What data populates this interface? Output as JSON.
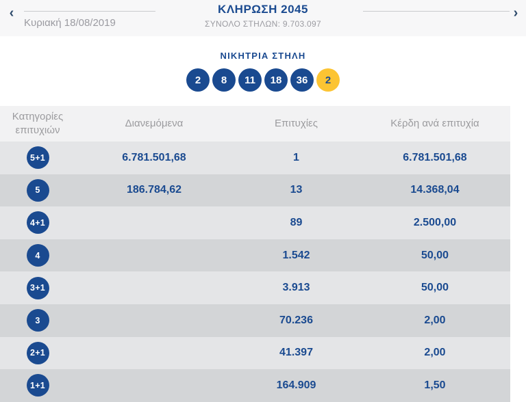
{
  "header": {
    "title": "ΚΛΗΡΩΣΗ 2045",
    "total_columns": "ΣΥΝΟΛΟ ΣΤΗΛΩΝ: 9.703.097",
    "date": "Κυριακή 18/08/2019",
    "prev_icon": "‹",
    "next_icon": "›"
  },
  "winning": {
    "title": "ΝΙΚΗΤΡΙΑ ΣΤΗΛΗ",
    "numbers": [
      "2",
      "8",
      "11",
      "18",
      "36"
    ],
    "joker": "2"
  },
  "table": {
    "columns": {
      "category": "Κατηγορίες επιτυχιών",
      "distributed": "Διανεμόμενα",
      "winners": "Επιτυχίες",
      "prize": "Κέρδη ανά επιτυχία"
    },
    "rows": [
      {
        "category": "5+1",
        "distributed": "6.781.501,68",
        "winners": "1",
        "prize": "6.781.501,68"
      },
      {
        "category": "5",
        "distributed": "186.784,62",
        "winners": "13",
        "prize": "14.368,04"
      },
      {
        "category": "4+1",
        "distributed": "",
        "winners": "89",
        "prize": "2.500,00"
      },
      {
        "category": "4",
        "distributed": "",
        "winners": "1.542",
        "prize": "50,00"
      },
      {
        "category": "3+1",
        "distributed": "",
        "winners": "3.913",
        "prize": "50,00"
      },
      {
        "category": "3",
        "distributed": "",
        "winners": "70.236",
        "prize": "2,00"
      },
      {
        "category": "2+1",
        "distributed": "",
        "winners": "41.397",
        "prize": "2,00"
      },
      {
        "category": "1+1",
        "distributed": "",
        "winners": "164.909",
        "prize": "1,50"
      }
    ]
  },
  "colors": {
    "brand_blue": "#1a4a90",
    "joker_yellow": "#fcc433",
    "row_light": "#e4e5e7",
    "row_dark": "#d3d5d7",
    "header_gray": "#f2f2f3",
    "muted_text": "#9b9ba1"
  }
}
